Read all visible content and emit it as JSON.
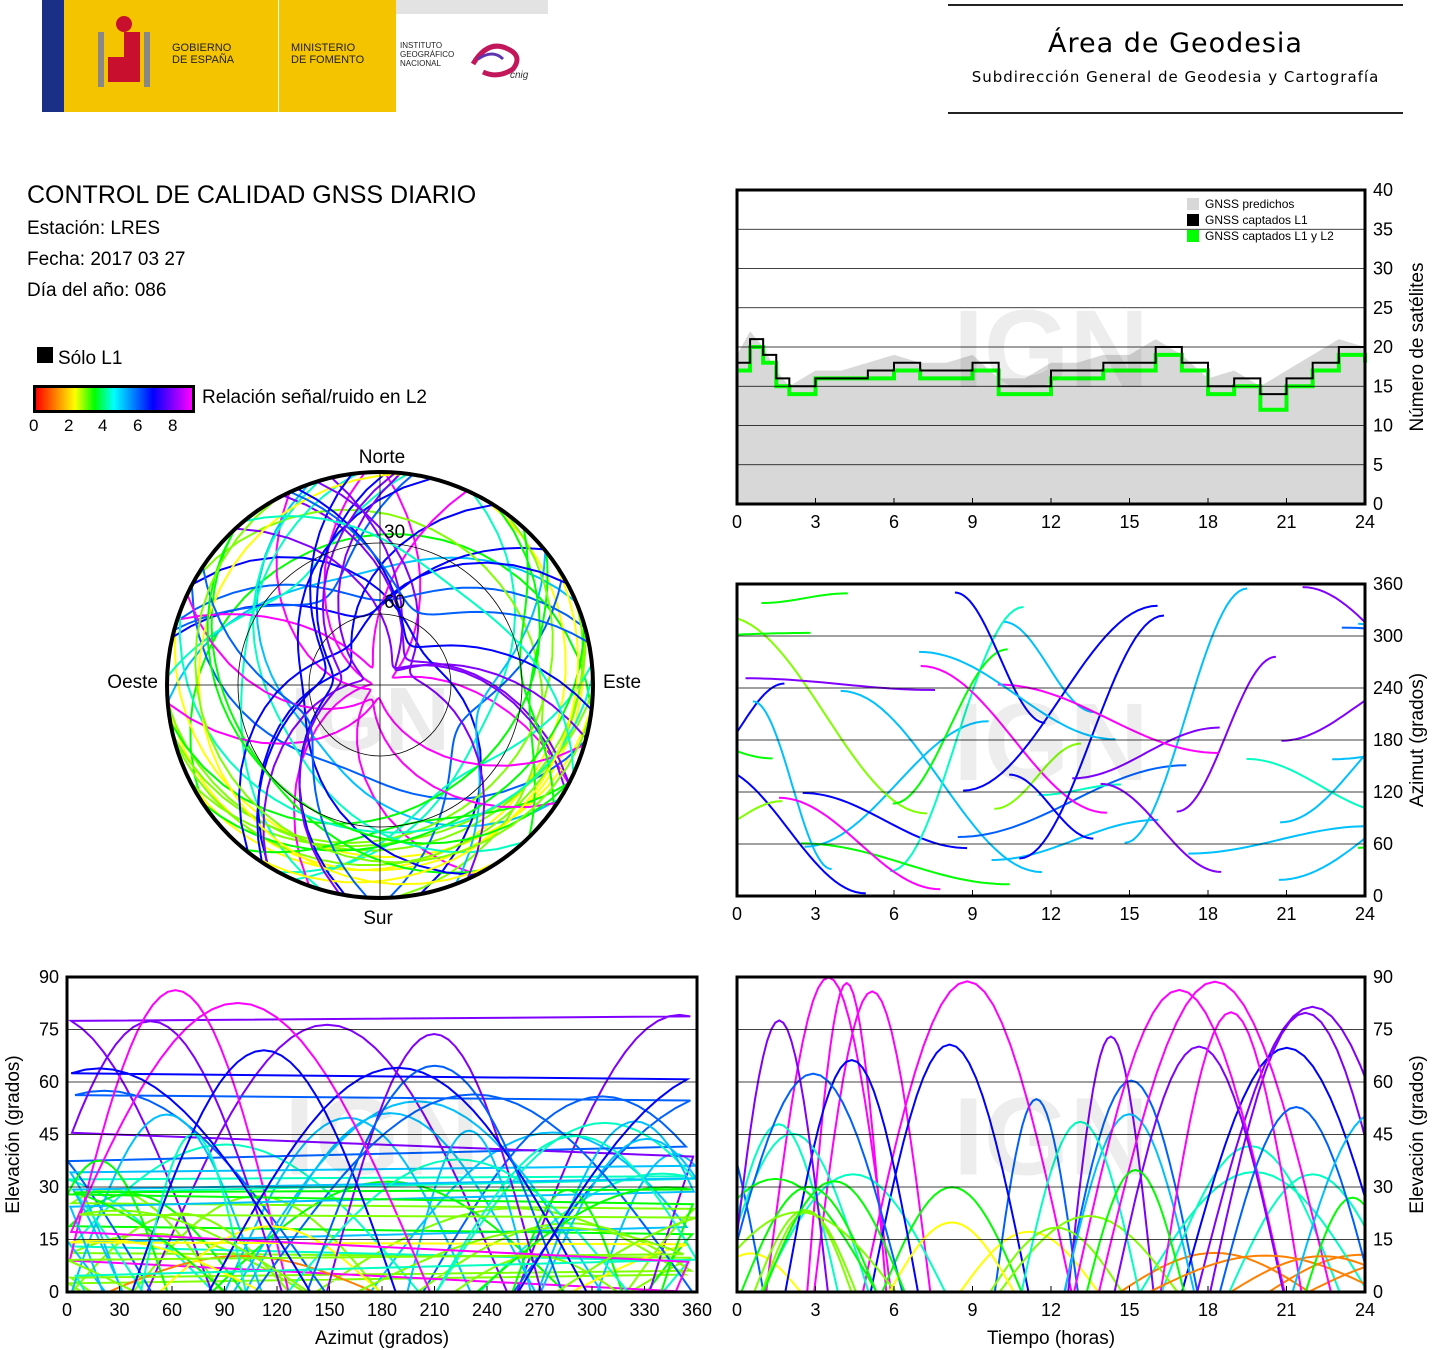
{
  "header": {
    "gov_label": "GOBIERNO\nDE ESPAÑA",
    "ministry_label": "MINISTERIO\nDE FOMENTO",
    "institute_label": "INSTITUTO\nGEOGRÁFICO\nNACIONAL",
    "cnig_label": "cnig",
    "area_title": "Área de Geodesia",
    "area_subtitle": "Subdirección General de Geodesia y Cartografía"
  },
  "info": {
    "title": "CONTROL DE CALIDAD GNSS DIARIO",
    "station": "Estación: LRES",
    "date": "Fecha: 2017 03 27",
    "doy": "Día del año: 086"
  },
  "legend": {
    "solo_l1": "Sólo L1",
    "snr_label": "Relación señal/ruido en L2",
    "snr_ticks": [
      "0",
      "2",
      "4",
      "6",
      "8"
    ]
  },
  "watermark": "IGN",
  "colors": {
    "solo_l1": "#000000",
    "predicted": "#d8d8d8",
    "l1l2": "#00ff00",
    "snr_scale": [
      "#ff0000",
      "#ffff00",
      "#00ff00",
      "#00ffff",
      "#0000ff",
      "#ff00ff"
    ]
  },
  "chart_data": [
    {
      "type": "polar-skyplot",
      "directions": {
        "north": "Norte",
        "south": "Sur",
        "west": "Oeste",
        "east": "Este"
      },
      "elevation_rings": [
        "30",
        "60"
      ],
      "note_series": "satellite tracks colored by L2 SNR"
    },
    {
      "type": "area",
      "ylabel": "Número de satélites",
      "xlim": [
        0,
        24
      ],
      "ylim": [
        0,
        40
      ],
      "xticks": [
        0,
        3,
        6,
        9,
        12,
        15,
        18,
        21,
        24
      ],
      "yticks": [
        0,
        5,
        10,
        15,
        20,
        25,
        30,
        35,
        40
      ],
      "legend": [
        "GNSS predichos",
        "GNSS captados L1",
        "GNSS captados L1 y L2"
      ],
      "x": [
        0,
        0.5,
        1,
        1.5,
        2,
        3,
        4,
        5,
        6,
        7,
        8,
        9,
        10,
        11,
        12,
        13,
        14,
        15,
        16,
        17,
        18,
        19,
        20,
        21,
        22,
        23,
        24
      ],
      "series": [
        {
          "name": "GNSS predichos",
          "values": [
            19,
            22,
            20,
            17,
            15,
            17,
            17,
            18,
            19,
            18,
            18,
            19,
            16,
            16,
            18,
            18,
            19,
            19,
            21,
            19,
            16,
            17,
            15,
            17,
            19,
            21,
            20
          ]
        },
        {
          "name": "GNSS captados L1",
          "values": [
            18,
            21,
            19,
            16,
            15,
            16,
            16,
            17,
            18,
            17,
            17,
            18,
            15,
            15,
            17,
            17,
            18,
            18,
            20,
            18,
            15,
            16,
            14,
            16,
            18,
            20,
            19
          ]
        },
        {
          "name": "GNSS captados L1 y L2",
          "values": [
            17,
            20,
            18,
            15,
            14,
            16,
            16,
            16,
            17,
            16,
            16,
            17,
            14,
            14,
            16,
            16,
            17,
            17,
            19,
            17,
            14,
            15,
            12,
            15,
            17,
            19,
            18
          ]
        }
      ]
    },
    {
      "type": "scatter",
      "ylabel": "Azimut (grados)",
      "xlim": [
        0,
        24
      ],
      "ylim": [
        0,
        360
      ],
      "xticks": [
        0,
        3,
        6,
        9,
        12,
        15,
        18,
        21,
        24
      ],
      "yticks": [
        0,
        60,
        120,
        180,
        240,
        300,
        360
      ]
    },
    {
      "type": "scatter",
      "xlabel": "Azimut (grados)",
      "ylabel": "Elevación (grados)",
      "xlim": [
        0,
        360
      ],
      "ylim": [
        0,
        90
      ],
      "xticks": [
        0,
        30,
        60,
        90,
        120,
        150,
        180,
        210,
        240,
        270,
        300,
        330,
        360
      ],
      "yticks": [
        0,
        15,
        30,
        45,
        60,
        75,
        90
      ]
    },
    {
      "type": "scatter",
      "xlabel": "Tiempo (horas)",
      "ylabel": "Elevación (grados)",
      "xlim": [
        0,
        24
      ],
      "ylim": [
        0,
        90
      ],
      "xticks": [
        0,
        3,
        6,
        9,
        12,
        15,
        18,
        21,
        24
      ],
      "yticks": [
        0,
        15,
        30,
        45,
        60,
        75,
        90
      ]
    }
  ]
}
